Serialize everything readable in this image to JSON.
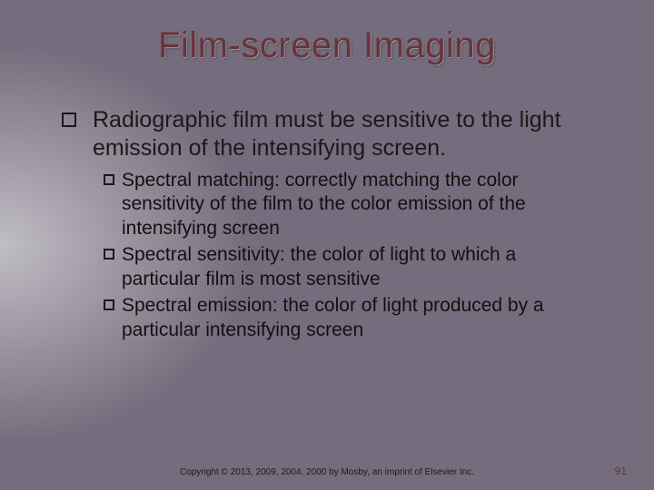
{
  "title": "Film-screen Imaging",
  "title_color": "#69333b",
  "title_fontsize": 40,
  "background_base": "#756d7d",
  "body_text_color": "#1a1a1a",
  "main_point": "Radiographic film must be sensitive to the light emission of the intensifying screen.",
  "main_fontsize": 25,
  "sub_fontsize": 21,
  "sub_points": [
    "Spectral matching: correctly matching the color sensitivity of the film to the color emission of the intensifying screen",
    "Spectral sensitivity: the color of light to which a particular film is most sensitive",
    "Spectral emission: the color of light produced by a particular intensifying screen"
  ],
  "copyright": "Copyright © 2013, 2009, 2004, 2000 by Mosby, an imprint of Elsevier Inc.",
  "copyright_fontsize": 10,
  "page_number": "91",
  "page_number_color": "#6b2e36"
}
